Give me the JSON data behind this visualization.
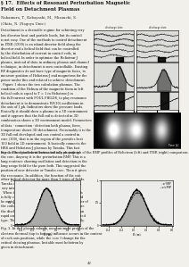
{
  "title": "§ 17.  Effects of Resonant Perturbation Magnetic",
  "title2": "Field on Detachment Plasmas",
  "authors": "Nakamura, T., Kobayashi, M., Mizuuchi, S.",
  "affil": "(Okita, N. (Nagoya Univ.)",
  "bg": "#f2f0eb",
  "text_col": "#1a1a1a",
  "fig_caption2": "Fig. 2. The detachment estimated as a photograph of the RMP profiles of Heliotron (left) and ITER (right) comparison.",
  "fig_caption3": "Fig. 3. At this plasma column, measurement profiles of the\nelectron thermal (top to bottom) influence occurs in the context\nof each axis positions, while the core I change for the\ncritical showing plasmas. Instable most heliotron by\ngiven in detachment."
}
